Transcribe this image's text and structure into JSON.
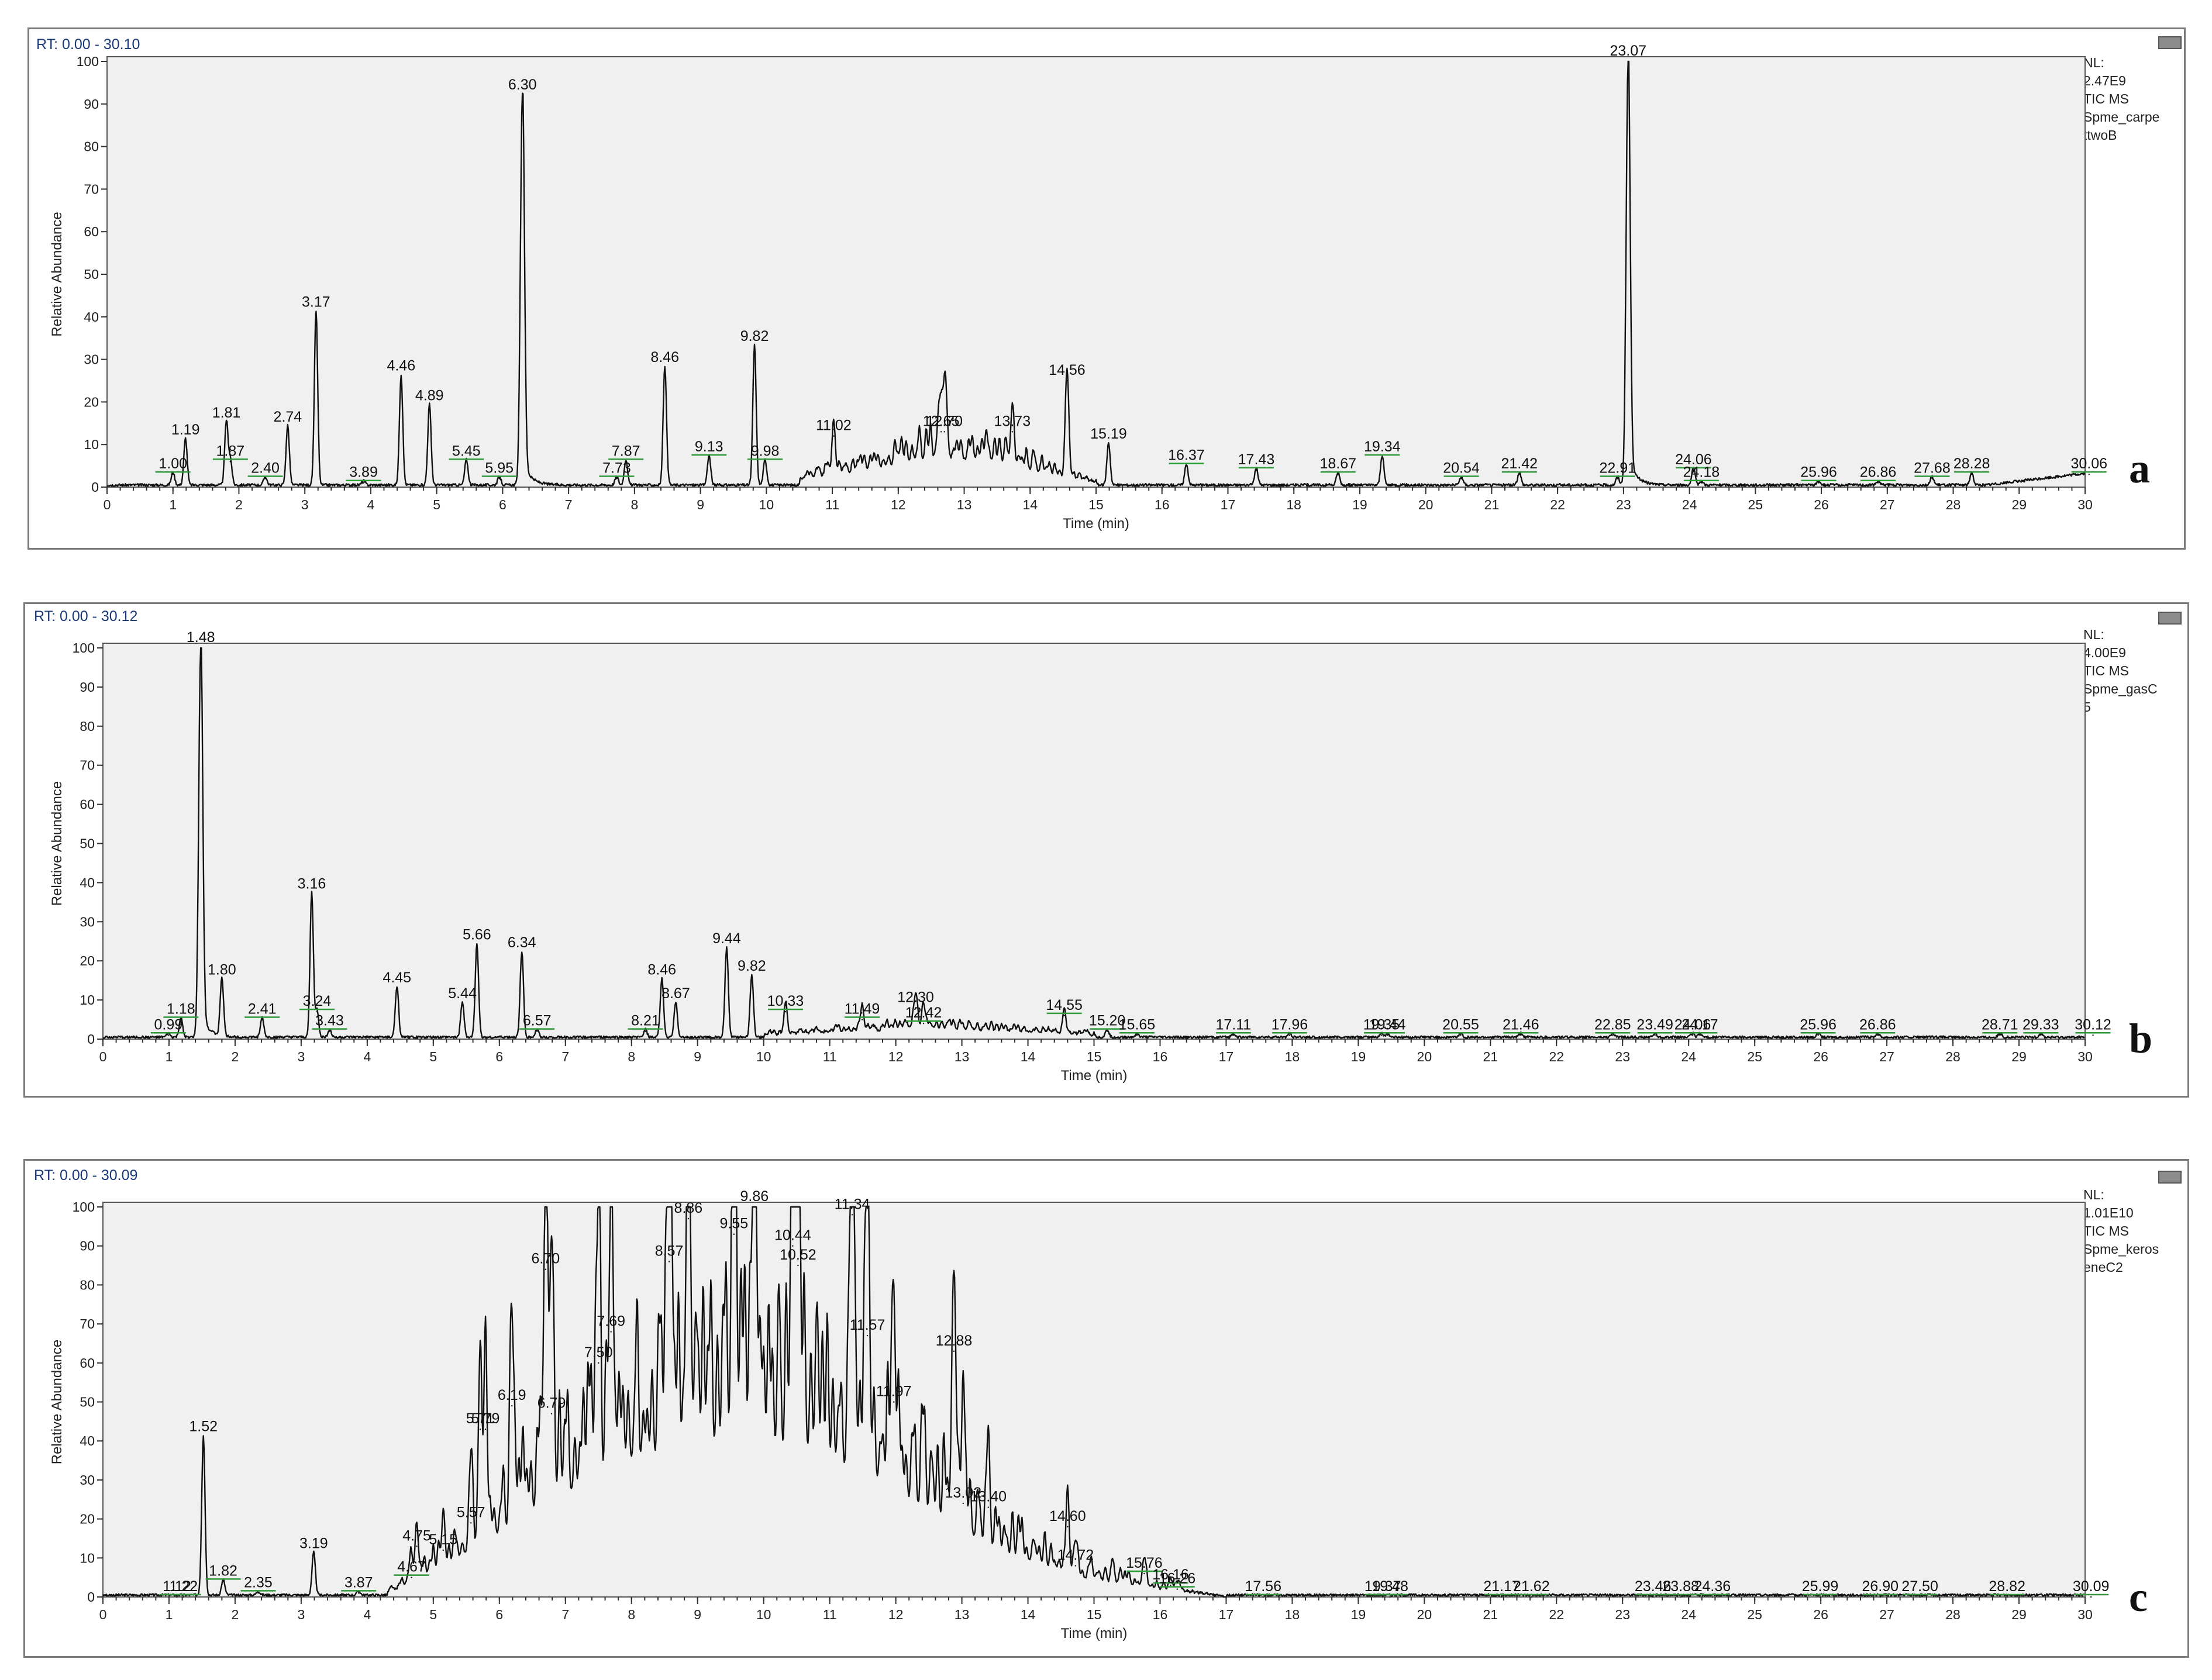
{
  "chart_data": [
    {
      "type": "line",
      "panel_letter": "a",
      "rt_range": "RT: 0.00 - 30.10",
      "nl_lines": [
        "NL:",
        "2.47E9",
        "TIC  MS",
        "Spme_carpe",
        "ttwoB"
      ],
      "xlabel": "Time (min)",
      "ylabel": "Relative Abundance",
      "xlim": [
        0,
        30
      ],
      "ylim": [
        0,
        100
      ],
      "x_ticks": [
        0,
        1,
        2,
        3,
        4,
        5,
        6,
        7,
        8,
        9,
        10,
        11,
        12,
        13,
        14,
        15,
        16,
        17,
        18,
        19,
        20,
        21,
        22,
        23,
        24,
        25,
        26,
        27,
        28,
        29,
        30
      ],
      "y_ticks": [
        0,
        10,
        20,
        30,
        40,
        50,
        60,
        70,
        80,
        90,
        100
      ],
      "peaks": [
        {
          "label": "1.00",
          "x": 1.0,
          "y": 3
        },
        {
          "label": "1.19",
          "x": 1.19,
          "y": 11
        },
        {
          "label": "1.81",
          "x": 1.81,
          "y": 15
        },
        {
          "label": "1.87",
          "x": 1.87,
          "y": 6
        },
        {
          "label": "2.40",
          "x": 2.4,
          "y": 2
        },
        {
          "label": "2.74",
          "x": 2.74,
          "y": 14
        },
        {
          "label": "3.17",
          "x": 3.17,
          "y": 41
        },
        {
          "label": "3.89",
          "x": 3.89,
          "y": 1
        },
        {
          "label": "4.46",
          "x": 4.46,
          "y": 26
        },
        {
          "label": "4.89",
          "x": 4.89,
          "y": 19
        },
        {
          "label": "5.45",
          "x": 5.45,
          "y": 6
        },
        {
          "label": "5.95",
          "x": 5.95,
          "y": 2
        },
        {
          "label": "6.30",
          "x": 6.3,
          "y": 92
        },
        {
          "label": "7.73",
          "x": 7.73,
          "y": 2
        },
        {
          "label": "7.87",
          "x": 7.87,
          "y": 6
        },
        {
          "label": "8.46",
          "x": 8.46,
          "y": 28
        },
        {
          "label": "9.13",
          "x": 9.13,
          "y": 7
        },
        {
          "label": "9.82",
          "x": 9.82,
          "y": 33
        },
        {
          "label": "9.98",
          "x": 9.98,
          "y": 6
        },
        {
          "label": "11.02",
          "x": 11.02,
          "y": 12
        },
        {
          "label": "12.65",
          "x": 12.65,
          "y": 13
        },
        {
          "label": "12.70",
          "x": 12.7,
          "y": 13
        },
        {
          "label": "13.73",
          "x": 13.73,
          "y": 13
        },
        {
          "label": "14.56",
          "x": 14.56,
          "y": 25
        },
        {
          "label": "15.19",
          "x": 15.19,
          "y": 10
        },
        {
          "label": "16.37",
          "x": 16.37,
          "y": 5
        },
        {
          "label": "17.43",
          "x": 17.43,
          "y": 4
        },
        {
          "label": "18.67",
          "x": 18.67,
          "y": 3
        },
        {
          "label": "19.34",
          "x": 19.34,
          "y": 7
        },
        {
          "label": "20.54",
          "x": 20.54,
          "y": 2
        },
        {
          "label": "21.42",
          "x": 21.42,
          "y": 3
        },
        {
          "label": "22.91",
          "x": 22.91,
          "y": 2
        },
        {
          "label": "23.07",
          "x": 23.07,
          "y": 100
        },
        {
          "label": "24.06",
          "x": 24.06,
          "y": 4
        },
        {
          "label": "24.18",
          "x": 24.18,
          "y": 1
        },
        {
          "label": "25.96",
          "x": 25.96,
          "y": 1
        },
        {
          "label": "26.86",
          "x": 26.86,
          "y": 1
        },
        {
          "label": "27.68",
          "x": 27.68,
          "y": 2
        },
        {
          "label": "28.28",
          "x": 28.28,
          "y": 3
        },
        {
          "label": "30.06",
          "x": 30.06,
          "y": 3
        }
      ],
      "hump": [
        [
          10.5,
          2
        ],
        [
          11.5,
          4
        ],
        [
          12.5,
          7
        ],
        [
          13.5,
          6
        ],
        [
          14.3,
          3
        ],
        [
          15,
          1
        ]
      ]
    },
    {
      "type": "line",
      "panel_letter": "b",
      "rt_range": "RT: 0.00 - 30.12",
      "nl_lines": [
        "NL:",
        "4.00E9",
        "TIC  MS",
        "Spme_gasC",
        "5"
      ],
      "xlabel": "Time (min)",
      "ylabel": "Relative Abundance",
      "xlim": [
        0,
        30
      ],
      "ylim": [
        0,
        100
      ],
      "x_ticks": [
        0,
        1,
        2,
        3,
        4,
        5,
        6,
        7,
        8,
        9,
        10,
        11,
        12,
        13,
        14,
        15,
        16,
        17,
        18,
        19,
        20,
        21,
        22,
        23,
        24,
        25,
        26,
        27,
        28,
        29,
        30
      ],
      "y_ticks": [
        0,
        10,
        20,
        30,
        40,
        50,
        60,
        70,
        80,
        90,
        100
      ],
      "peaks": [
        {
          "label": "0.99",
          "x": 0.99,
          "y": 1
        },
        {
          "label": "1.18",
          "x": 1.18,
          "y": 5
        },
        {
          "label": "1.48",
          "x": 1.48,
          "y": 100
        },
        {
          "label": "1.80",
          "x": 1.8,
          "y": 15
        },
        {
          "label": "2.41",
          "x": 2.41,
          "y": 5
        },
        {
          "label": "3.16",
          "x": 3.16,
          "y": 37
        },
        {
          "label": "3.24",
          "x": 3.24,
          "y": 7
        },
        {
          "label": "3.43",
          "x": 3.43,
          "y": 2
        },
        {
          "label": "4.45",
          "x": 4.45,
          "y": 13
        },
        {
          "label": "5.44",
          "x": 5.44,
          "y": 9
        },
        {
          "label": "5.66",
          "x": 5.66,
          "y": 24
        },
        {
          "label": "6.34",
          "x": 6.34,
          "y": 22
        },
        {
          "label": "6.57",
          "x": 6.57,
          "y": 2
        },
        {
          "label": "8.21",
          "x": 8.21,
          "y": 2
        },
        {
          "label": "8.46",
          "x": 8.46,
          "y": 15
        },
        {
          "label": "8.67",
          "x": 8.67,
          "y": 9
        },
        {
          "label": "9.44",
          "x": 9.44,
          "y": 23
        },
        {
          "label": "9.82",
          "x": 9.82,
          "y": 16
        },
        {
          "label": "10.33",
          "x": 10.33,
          "y": 7
        },
        {
          "label": "11.49",
          "x": 11.49,
          "y": 5
        },
        {
          "label": "12.30",
          "x": 12.3,
          "y": 8
        },
        {
          "label": "12.42",
          "x": 12.42,
          "y": 4
        },
        {
          "label": "14.55",
          "x": 14.55,
          "y": 6
        },
        {
          "label": "15.20",
          "x": 15.2,
          "y": 2
        },
        {
          "label": "15.65",
          "x": 15.65,
          "y": 1
        },
        {
          "label": "17.11",
          "x": 17.11,
          "y": 1
        },
        {
          "label": "17.96",
          "x": 17.96,
          "y": 1
        },
        {
          "label": "19.35",
          "x": 19.35,
          "y": 1
        },
        {
          "label": "19.44",
          "x": 19.44,
          "y": 1
        },
        {
          "label": "20.55",
          "x": 20.55,
          "y": 1
        },
        {
          "label": "21.46",
          "x": 21.46,
          "y": 1
        },
        {
          "label": "22.85",
          "x": 22.85,
          "y": 1
        },
        {
          "label": "23.49",
          "x": 23.49,
          "y": 1
        },
        {
          "label": "24.06",
          "x": 24.06,
          "y": 1
        },
        {
          "label": "24.17",
          "x": 24.17,
          "y": 1
        },
        {
          "label": "25.96",
          "x": 25.96,
          "y": 1
        },
        {
          "label": "26.86",
          "x": 26.86,
          "y": 1
        },
        {
          "label": "28.71",
          "x": 28.71,
          "y": 1
        },
        {
          "label": "29.33",
          "x": 29.33,
          "y": 1
        },
        {
          "label": "30.12",
          "x": 30.12,
          "y": 1
        }
      ],
      "hump": [
        [
          10,
          1
        ],
        [
          11.5,
          2
        ],
        [
          12.5,
          3
        ],
        [
          13.5,
          2
        ],
        [
          15,
          1
        ]
      ]
    },
    {
      "type": "line",
      "panel_letter": "c",
      "rt_range": "RT: 0.00 - 30.09",
      "nl_lines": [
        "NL:",
        "1.01E10",
        "TIC  MS",
        "Spme_keros",
        "eneC2"
      ],
      "xlabel": "Time (min)",
      "ylabel": "Relative Abundance",
      "xlim": [
        0,
        30
      ],
      "ylim": [
        0,
        100
      ],
      "x_ticks": [
        0,
        1,
        2,
        3,
        4,
        5,
        6,
        7,
        8,
        9,
        10,
        11,
        12,
        13,
        14,
        15,
        16,
        17,
        18,
        19,
        20,
        21,
        22,
        23,
        24,
        25,
        26,
        27,
        28,
        29,
        30
      ],
      "y_ticks": [
        0,
        10,
        20,
        30,
        40,
        50,
        60,
        70,
        80,
        90,
        100
      ],
      "peaks": [
        {
          "label": "1.12",
          "x": 1.12,
          "y": 0
        },
        {
          "label": "1.22",
          "x": 1.22,
          "y": 0
        },
        {
          "label": "1.52",
          "x": 1.52,
          "y": 41
        },
        {
          "label": "1.82",
          "x": 1.82,
          "y": 4
        },
        {
          "label": "2.35",
          "x": 2.35,
          "y": 1
        },
        {
          "label": "3.19",
          "x": 3.19,
          "y": 11
        },
        {
          "label": "3.87",
          "x": 3.87,
          "y": 1
        },
        {
          "label": "4.67",
          "x": 4.67,
          "y": 5
        },
        {
          "label": "4.75",
          "x": 4.75,
          "y": 13
        },
        {
          "label": "5.15",
          "x": 5.15,
          "y": 12
        },
        {
          "label": "5.57",
          "x": 5.57,
          "y": 19
        },
        {
          "label": "5.71",
          "x": 5.71,
          "y": 43
        },
        {
          "label": "5.79",
          "x": 5.79,
          "y": 43
        },
        {
          "label": "6.19",
          "x": 6.19,
          "y": 49
        },
        {
          "label": "6.70",
          "x": 6.7,
          "y": 84
        },
        {
          "label": "6.79",
          "x": 6.79,
          "y": 47
        },
        {
          "label": "7.50",
          "x": 7.5,
          "y": 60
        },
        {
          "label": "7.69",
          "x": 7.69,
          "y": 68
        },
        {
          "label": "8.57",
          "x": 8.57,
          "y": 86
        },
        {
          "label": "8.86",
          "x": 8.86,
          "y": 97
        },
        {
          "label": "9.55",
          "x": 9.55,
          "y": 93
        },
        {
          "label": "9.86",
          "x": 9.86,
          "y": 100
        },
        {
          "label": "10.44",
          "x": 10.44,
          "y": 90
        },
        {
          "label": "10.52",
          "x": 10.52,
          "y": 85
        },
        {
          "label": "11.34",
          "x": 11.34,
          "y": 98
        },
        {
          "label": "11.57",
          "x": 11.57,
          "y": 67
        },
        {
          "label": "11.97",
          "x": 11.97,
          "y": 50
        },
        {
          "label": "12.88",
          "x": 12.88,
          "y": 63
        },
        {
          "label": "13.02",
          "x": 13.02,
          "y": 24
        },
        {
          "label": "13.40",
          "x": 13.4,
          "y": 23
        },
        {
          "label": "14.60",
          "x": 14.6,
          "y": 18
        },
        {
          "label": "14.72",
          "x": 14.72,
          "y": 8
        },
        {
          "label": "15.76",
          "x": 15.76,
          "y": 6
        },
        {
          "label": "16.16",
          "x": 16.16,
          "y": 3
        },
        {
          "label": "16.26",
          "x": 16.26,
          "y": 2
        },
        {
          "label": "17.56",
          "x": 17.56,
          "y": 0
        },
        {
          "label": "19.37",
          "x": 19.37,
          "y": 0
        },
        {
          "label": "19.48",
          "x": 19.48,
          "y": 0
        },
        {
          "label": "21.17",
          "x": 21.17,
          "y": 0
        },
        {
          "label": "21.62",
          "x": 21.62,
          "y": 0
        },
        {
          "label": "23.46",
          "x": 23.46,
          "y": 0
        },
        {
          "label": "23.88",
          "x": 23.88,
          "y": 0
        },
        {
          "label": "24.36",
          "x": 24.36,
          "y": 0
        },
        {
          "label": "25.99",
          "x": 25.99,
          "y": 0
        },
        {
          "label": "26.90",
          "x": 26.9,
          "y": 0
        },
        {
          "label": "27.50",
          "x": 27.5,
          "y": 0
        },
        {
          "label": "28.82",
          "x": 28.82,
          "y": 0
        },
        {
          "label": "30.09",
          "x": 30.09,
          "y": 0
        }
      ],
      "hump": [
        [
          4.3,
          1
        ],
        [
          5.2,
          8
        ],
        [
          6.5,
          22
        ],
        [
          8,
          35
        ],
        [
          9.5,
          40
        ],
        [
          11,
          35
        ],
        [
          12.5,
          22
        ],
        [
          13.5,
          12
        ],
        [
          14.8,
          5
        ],
        [
          16,
          2
        ],
        [
          17,
          0
        ]
      ]
    }
  ]
}
